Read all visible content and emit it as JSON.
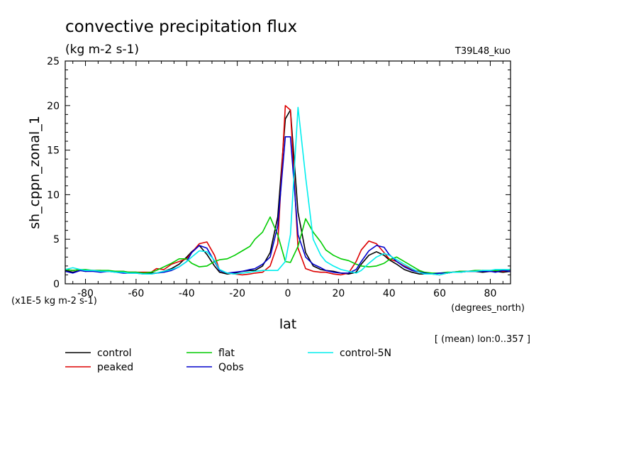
{
  "chart_data": {
    "type": "line",
    "title": "convective precipitation flux",
    "units": "(kg m-2 s-1)",
    "run_label": "T39L48_kuo",
    "ylabel": "sh_cppn_zonal_1",
    "xlabel": "lat",
    "x_units": "(degrees_north)",
    "y_scale_note": "(x1E-5 kg m-2 s-1)",
    "mean_note": "[ (mean) lon:0..357 ]",
    "xlim": [
      -88,
      88
    ],
    "ylim": [
      0,
      25
    ],
    "x_ticks": [
      -80,
      -60,
      -40,
      -20,
      0,
      20,
      40,
      60,
      80
    ],
    "y_ticks": [
      0,
      5,
      10,
      15,
      20,
      25
    ],
    "x_tick_labels": [
      "-80",
      "-60",
      "-40",
      "-20",
      "0",
      "20",
      "40",
      "60",
      "80"
    ],
    "y_tick_labels": [
      "0",
      "5",
      "10",
      "15",
      "20",
      "25"
    ],
    "x": [
      -88,
      -85,
      -82,
      -80,
      -77,
      -74,
      -71,
      -68,
      -65,
      -63,
      -60,
      -57,
      -54,
      -52,
      -49,
      -46,
      -43,
      -40,
      -38,
      -35,
      -32,
      -29,
      -27,
      -24,
      -21,
      -18,
      -15,
      -13,
      -10,
      -7,
      -4,
      -1,
      1,
      4,
      7,
      10,
      13,
      15,
      18,
      21,
      24,
      27,
      29,
      32,
      35,
      38,
      40,
      43,
      46,
      49,
      52,
      54,
      57,
      60,
      63,
      65,
      68,
      71,
      74,
      77,
      80,
      82,
      85,
      88
    ],
    "series": [
      {
        "name": "control",
        "color": "#000000",
        "values": [
          1.5,
          1.3,
          1.5,
          1.4,
          1.5,
          1.4,
          1.4,
          1.4,
          1.3,
          1.3,
          1.3,
          1.2,
          1.2,
          1.2,
          1.4,
          1.7,
          2.2,
          3.0,
          3.6,
          4.3,
          3.3,
          2.0,
          1.3,
          1.1,
          1.2,
          1.4,
          1.5,
          1.5,
          2.0,
          3.5,
          7.5,
          18.5,
          19.5,
          8.0,
          3.5,
          2.0,
          1.6,
          1.5,
          1.4,
          1.2,
          1.1,
          1.3,
          2.2,
          3.2,
          3.6,
          3.2,
          2.7,
          2.2,
          1.6,
          1.3,
          1.1,
          1.1,
          1.1,
          1.2,
          1.2,
          1.3,
          1.3,
          1.4,
          1.4,
          1.3,
          1.4,
          1.4,
          1.3,
          1.4
        ]
      },
      {
        "name": "peaked",
        "color": "#dd0000",
        "values": [
          1.6,
          1.5,
          1.6,
          1.5,
          1.5,
          1.5,
          1.4,
          1.4,
          1.4,
          1.3,
          1.3,
          1.3,
          1.3,
          1.7,
          1.6,
          2.2,
          2.5,
          2.8,
          3.5,
          4.5,
          4.7,
          3.2,
          1.5,
          1.2,
          1.1,
          1.0,
          1.1,
          1.2,
          1.3,
          2.0,
          4.5,
          20.0,
          19.5,
          4.0,
          1.7,
          1.4,
          1.3,
          1.3,
          1.1,
          1.0,
          1.2,
          2.5,
          3.8,
          4.8,
          4.5,
          3.5,
          2.8,
          2.5,
          2.0,
          1.6,
          1.4,
          1.2,
          1.1,
          1.0,
          1.2,
          1.3,
          1.4,
          1.4,
          1.4,
          1.5,
          1.4,
          1.5,
          1.4,
          1.5
        ]
      },
      {
        "name": "flat",
        "color": "#00cc00",
        "values": [
          1.6,
          1.5,
          1.6,
          1.6,
          1.5,
          1.5,
          1.5,
          1.4,
          1.4,
          1.3,
          1.3,
          1.2,
          1.3,
          1.5,
          1.9,
          2.3,
          2.8,
          2.8,
          2.3,
          1.9,
          2.0,
          2.5,
          2.7,
          2.8,
          3.2,
          3.7,
          4.2,
          5.0,
          5.8,
          7.5,
          5.5,
          2.5,
          2.4,
          4.2,
          7.3,
          5.8,
          4.7,
          3.8,
          3.2,
          2.8,
          2.6,
          2.2,
          2.0,
          1.9,
          2.0,
          2.3,
          2.7,
          3.0,
          2.5,
          2.0,
          1.5,
          1.3,
          1.2,
          1.2,
          1.3,
          1.3,
          1.4,
          1.4,
          1.5,
          1.5,
          1.5,
          1.5,
          1.5,
          1.6
        ]
      },
      {
        "name": "Qobs",
        "color": "#0000cc",
        "values": [
          1.4,
          1.2,
          1.5,
          1.4,
          1.4,
          1.3,
          1.4,
          1.3,
          1.2,
          1.2,
          1.2,
          1.1,
          1.1,
          1.2,
          1.3,
          1.5,
          1.9,
          2.5,
          3.5,
          4.3,
          4.0,
          2.5,
          1.5,
          1.2,
          1.3,
          1.4,
          1.6,
          1.7,
          2.2,
          3.0,
          6.5,
          16.5,
          16.5,
          5.5,
          3.0,
          2.2,
          1.8,
          1.5,
          1.3,
          1.2,
          1.2,
          1.6,
          2.5,
          3.7,
          4.3,
          4.1,
          3.3,
          2.5,
          1.9,
          1.5,
          1.3,
          1.2,
          1.1,
          1.2,
          1.2,
          1.3,
          1.3,
          1.4,
          1.4,
          1.4,
          1.4,
          1.3,
          1.5,
          1.4
        ]
      },
      {
        "name": "control-5N",
        "color": "#00eeee",
        "values": [
          1.6,
          1.8,
          1.6,
          1.5,
          1.5,
          1.4,
          1.4,
          1.3,
          1.3,
          1.2,
          1.2,
          1.1,
          1.1,
          1.2,
          1.4,
          1.6,
          1.9,
          2.5,
          3.0,
          3.7,
          3.6,
          2.6,
          1.6,
          1.2,
          1.1,
          1.2,
          1.3,
          1.4,
          1.5,
          1.5,
          1.5,
          2.5,
          5.5,
          19.8,
          12.0,
          5.0,
          3.2,
          2.5,
          2.0,
          1.6,
          1.4,
          1.2,
          1.5,
          2.3,
          3.0,
          3.4,
          3.2,
          2.7,
          2.2,
          1.7,
          1.3,
          1.1,
          1.1,
          1.0,
          1.2,
          1.3,
          1.3,
          1.4,
          1.4,
          1.5,
          1.5,
          1.6,
          1.6,
          1.6
        ]
      }
    ]
  }
}
